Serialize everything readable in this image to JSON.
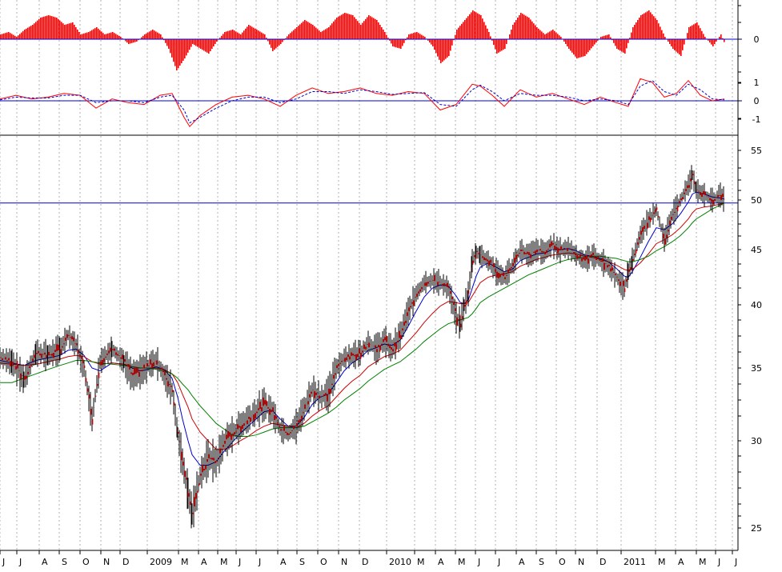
{
  "chart_data": [
    {
      "type": "bar",
      "panel": "momentum-histogram",
      "y_ticks": [
        {
          "value": 0,
          "label": "0"
        }
      ],
      "colors": {
        "bar": "#ff0000",
        "zero_line": "#0000cc"
      },
      "x": [
        0,
        10,
        20,
        30,
        40,
        50,
        60,
        70,
        80,
        90,
        100,
        110,
        120,
        130,
        140,
        150,
        160,
        170,
        180,
        190,
        200,
        210,
        220,
        230,
        240,
        250,
        260,
        270,
        280,
        290,
        300,
        310,
        320,
        330,
        340,
        350,
        360,
        370,
        380,
        390,
        400,
        410,
        420,
        430,
        440,
        450,
        460,
        470,
        480,
        490,
        500,
        510,
        520,
        530,
        540,
        550,
        560,
        570,
        580,
        590,
        600,
        610,
        620,
        630,
        640,
        650,
        660,
        670,
        680,
        690,
        700,
        710,
        720,
        730,
        740,
        750,
        760,
        770,
        780,
        790,
        800,
        810,
        820,
        830,
        840,
        850,
        860,
        870,
        880,
        890,
        900,
        905
      ],
      "values": [
        0.2,
        0.3,
        0.1,
        0.4,
        0.6,
        0.9,
        1.0,
        0.9,
        0.6,
        0.7,
        0.2,
        0.3,
        0.5,
        0.2,
        0.3,
        0.1,
        -0.2,
        -0.1,
        0.2,
        0.4,
        0.2,
        -0.4,
        -1.3,
        -0.8,
        -0.2,
        -0.4,
        -0.6,
        -0.1,
        0.3,
        0.4,
        0.2,
        0.6,
        0.4,
        0.2,
        -0.5,
        -0.2,
        0.2,
        0.5,
        0.8,
        0.6,
        0.3,
        0.5,
        0.9,
        1.1,
        1.0,
        0.6,
        1.0,
        0.8,
        0.3,
        -0.3,
        -0.4,
        0.2,
        0.3,
        0.1,
        -0.3,
        -1.0,
        -0.7,
        0.4,
        0.8,
        1.2,
        1.0,
        0.3,
        -0.6,
        -0.4,
        0.6,
        1.1,
        0.9,
        0.5,
        0.2,
        0.4,
        0.1,
        -0.4,
        -0.8,
        -0.7,
        -0.3,
        0.1,
        0.2,
        -0.4,
        -0.6,
        0.5,
        1.0,
        1.2,
        0.8,
        0.1,
        -0.4,
        -0.7,
        0.5,
        0.7,
        0.1,
        -0.3,
        0.2,
        -0.2
      ]
    },
    {
      "type": "line",
      "panel": "oscillator",
      "y_ticks": [
        {
          "value": 1,
          "label": "1"
        },
        {
          "value": 0,
          "label": "0"
        },
        {
          "value": -1,
          "label": "-1"
        }
      ],
      "colors": {
        "zero_line": "#0000cc"
      },
      "x": [
        0,
        20,
        40,
        60,
        80,
        100,
        120,
        140,
        160,
        180,
        200,
        215,
        230,
        237,
        250,
        270,
        290,
        310,
        330,
        350,
        370,
        390,
        410,
        430,
        450,
        470,
        490,
        510,
        530,
        550,
        570,
        590,
        600,
        615,
        630,
        650,
        670,
        690,
        710,
        730,
        750,
        770,
        785,
        800,
        815,
        830,
        845,
        860,
        875,
        890,
        905
      ],
      "series": [
        {
          "color": "#ff0000",
          "dash": false,
          "values": [
            0.1,
            0.3,
            0.1,
            0.2,
            0.4,
            0.3,
            -0.4,
            0.1,
            -0.1,
            -0.2,
            0.3,
            0.4,
            -0.9,
            -1.4,
            -0.8,
            -0.2,
            0.2,
            0.3,
            0.1,
            -0.3,
            0.3,
            0.7,
            0.4,
            0.5,
            0.7,
            0.4,
            0.3,
            0.5,
            0.4,
            -0.5,
            -0.2,
            0.9,
            0.8,
            0.3,
            -0.3,
            0.6,
            0.2,
            0.4,
            0.1,
            -0.2,
            0.2,
            -0.1,
            -0.3,
            1.2,
            1.0,
            0.2,
            0.4,
            1.1,
            0.3,
            0.0,
            0.1
          ]
        },
        {
          "color": "#0000cc",
          "dash": true,
          "values": [
            0.05,
            0.2,
            0.15,
            0.15,
            0.3,
            0.3,
            -0.1,
            0.0,
            0.0,
            -0.1,
            0.2,
            0.3,
            -0.5,
            -1.2,
            -0.9,
            -0.4,
            0.0,
            0.2,
            0.2,
            -0.1,
            0.1,
            0.5,
            0.5,
            0.4,
            0.6,
            0.5,
            0.35,
            0.4,
            0.45,
            -0.2,
            -0.3,
            0.6,
            0.85,
            0.5,
            0.0,
            0.4,
            0.3,
            0.3,
            0.2,
            0.0,
            0.1,
            0.0,
            -0.2,
            0.8,
            1.1,
            0.5,
            0.3,
            0.9,
            0.6,
            0.1,
            0.05
          ]
        }
      ]
    },
    {
      "type": "line",
      "panel": "price",
      "y_ticks": [
        {
          "value": 55,
          "label": "55"
        },
        {
          "value": 50,
          "label": "50"
        },
        {
          "value": 45,
          "label": "45"
        },
        {
          "value": 40,
          "label": "40"
        },
        {
          "value": 35,
          "label": "35"
        },
        {
          "value": 30,
          "label": "30"
        },
        {
          "value": 25,
          "label": "25"
        }
      ],
      "reference_line": {
        "value": 49.7,
        "color": "#0000cc"
      },
      "x_labels": [
        {
          "x": 3,
          "label": "J"
        },
        {
          "x": 24,
          "label": "J"
        },
        {
          "x": 52,
          "label": "A"
        },
        {
          "x": 77,
          "label": "S"
        },
        {
          "x": 103,
          "label": "O"
        },
        {
          "x": 129,
          "label": "N"
        },
        {
          "x": 153,
          "label": "D"
        },
        {
          "x": 187,
          "label": "2009"
        },
        {
          "x": 226,
          "label": "M"
        },
        {
          "x": 251,
          "label": "A"
        },
        {
          "x": 275,
          "label": "M"
        },
        {
          "x": 298,
          "label": "J"
        },
        {
          "x": 323,
          "label": "J"
        },
        {
          "x": 350,
          "label": "A"
        },
        {
          "x": 374,
          "label": "S"
        },
        {
          "x": 400,
          "label": "O"
        },
        {
          "x": 426,
          "label": "N"
        },
        {
          "x": 452,
          "label": "D"
        },
        {
          "x": 486,
          "label": "2010"
        },
        {
          "x": 521,
          "label": "M"
        },
        {
          "x": 547,
          "label": "A"
        },
        {
          "x": 572,
          "label": "M"
        },
        {
          "x": 597,
          "label": "J"
        },
        {
          "x": 622,
          "label": "J"
        },
        {
          "x": 648,
          "label": "A"
        },
        {
          "x": 673,
          "label": "S"
        },
        {
          "x": 698,
          "label": "O"
        },
        {
          "x": 722,
          "label": "N"
        },
        {
          "x": 749,
          "label": "D"
        },
        {
          "x": 779,
          "label": "2011"
        },
        {
          "x": 822,
          "label": "M"
        },
        {
          "x": 847,
          "label": "A"
        },
        {
          "x": 873,
          "label": "M"
        },
        {
          "x": 897,
          "label": "J"
        },
        {
          "x": 918,
          "label": "J"
        }
      ],
      "x": [
        0,
        15,
        30,
        45,
        60,
        75,
        85,
        95,
        105,
        115,
        125,
        140,
        155,
        165,
        175,
        185,
        195,
        205,
        215,
        222,
        228,
        235,
        240,
        250,
        260,
        270,
        280,
        290,
        300,
        310,
        320,
        330,
        340,
        350,
        360,
        370,
        380,
        390,
        400,
        410,
        420,
        430,
        440,
        450,
        460,
        470,
        480,
        490,
        500,
        510,
        520,
        530,
        540,
        550,
        560,
        570,
        575,
        580,
        585,
        590,
        595,
        600,
        610,
        620,
        630,
        640,
        650,
        660,
        670,
        680,
        690,
        700,
        710,
        720,
        730,
        740,
        750,
        760,
        770,
        780,
        785,
        790,
        800,
        810,
        820,
        830,
        840,
        850,
        860,
        865,
        870,
        880,
        890,
        900,
        905
      ],
      "series": [
        {
          "name": "price",
          "color": "#ff0000",
          "wick_color": "#000000",
          "values": [
            35.8,
            35.5,
            34.2,
            36.2,
            36.0,
            36.5,
            37.6,
            36.8,
            35.0,
            31.5,
            35.5,
            36.5,
            35.5,
            34.5,
            34.8,
            35.2,
            35.6,
            34.5,
            33.5,
            30.5,
            28.8,
            27.0,
            25.8,
            28.0,
            29.0,
            28.8,
            30.0,
            30.5,
            31.0,
            31.5,
            32.0,
            32.5,
            32.0,
            30.8,
            30.5,
            31.0,
            32.2,
            33.5,
            33.0,
            33.2,
            35.0,
            35.8,
            36.0,
            36.2,
            37.0,
            36.5,
            37.2,
            36.5,
            37.6,
            39.5,
            41.0,
            42.0,
            42.2,
            42.0,
            41.5,
            39.0,
            38.5,
            40.0,
            41.0,
            44.0,
            44.8,
            44.5,
            44.0,
            43.0,
            42.5,
            43.5,
            45.0,
            44.5,
            45.0,
            44.8,
            45.5,
            45.0,
            45.2,
            44.5,
            44.0,
            44.5,
            44.0,
            43.5,
            42.5,
            41.5,
            43.0,
            44.0,
            46.5,
            48.0,
            49.0,
            46.0,
            48.5,
            50.0,
            51.5,
            52.5,
            51.0,
            50.5,
            50.0,
            50.5,
            50.0
          ]
        },
        {
          "name": "ma-short",
          "color": "#0000cc",
          "values": [
            35.6,
            35.4,
            35.2,
            35.6,
            35.8,
            36.0,
            36.4,
            36.5,
            36.0,
            35.0,
            34.8,
            35.4,
            35.3,
            35.0,
            34.8,
            34.9,
            35.1,
            34.9,
            34.3,
            33.0,
            31.5,
            30.0,
            29.2,
            28.6,
            28.6,
            28.8,
            29.4,
            29.9,
            30.5,
            31.0,
            31.5,
            32.0,
            32.1,
            31.5,
            31.0,
            31.0,
            31.6,
            32.5,
            33.0,
            33.2,
            34.0,
            34.8,
            35.4,
            35.8,
            36.4,
            36.6,
            36.9,
            36.8,
            37.2,
            38.3,
            39.5,
            40.7,
            41.5,
            41.8,
            41.7,
            40.8,
            40.2,
            40.1,
            40.4,
            41.5,
            42.6,
            43.4,
            43.8,
            43.4,
            43.0,
            43.2,
            44.0,
            44.3,
            44.6,
            44.7,
            45.0,
            45.0,
            45.1,
            44.9,
            44.5,
            44.4,
            44.2,
            43.9,
            43.3,
            42.6,
            42.5,
            43.0,
            44.3,
            45.8,
            47.2,
            47.0,
            47.6,
            48.6,
            49.8,
            50.6,
            50.8,
            50.6,
            50.3,
            50.2,
            50.1
          ]
        },
        {
          "name": "ma-medium",
          "color": "#cc0000",
          "values": [
            35.4,
            35.3,
            35.2,
            35.3,
            35.5,
            35.7,
            35.9,
            36.0,
            35.9,
            35.5,
            35.3,
            35.4,
            35.3,
            35.1,
            35.0,
            35.0,
            35.0,
            34.9,
            34.6,
            34.0,
            33.2,
            32.3,
            31.5,
            30.6,
            30.0,
            29.5,
            29.5,
            29.7,
            30.0,
            30.3,
            30.7,
            31.0,
            31.2,
            31.1,
            31.0,
            30.9,
            31.2,
            31.7,
            32.1,
            32.4,
            33.0,
            33.6,
            34.1,
            34.5,
            35.1,
            35.5,
            35.9,
            36.1,
            36.4,
            37.1,
            37.8,
            38.6,
            39.3,
            39.9,
            40.3,
            40.2,
            40.1,
            40.1,
            40.2,
            40.8,
            41.4,
            42.0,
            42.5,
            42.7,
            42.8,
            43.0,
            43.5,
            43.8,
            44.1,
            44.3,
            44.5,
            44.6,
            44.7,
            44.6,
            44.4,
            44.3,
            44.1,
            43.9,
            43.6,
            43.2,
            43.1,
            43.2,
            43.8,
            44.6,
            45.6,
            46.0,
            46.5,
            47.2,
            48.1,
            48.7,
            49.1,
            49.3,
            49.4,
            49.6,
            49.7
          ]
        },
        {
          "name": "ma-long",
          "color": "#008000",
          "values": [
            34.0,
            34.0,
            34.3,
            34.6,
            34.9,
            35.2,
            35.4,
            35.6,
            35.6,
            35.5,
            35.4,
            35.3,
            35.2,
            35.1,
            35.0,
            35.0,
            34.9,
            34.8,
            34.6,
            34.3,
            33.9,
            33.5,
            33.1,
            32.4,
            31.8,
            31.2,
            30.8,
            30.4,
            30.3,
            30.3,
            30.4,
            30.6,
            30.8,
            30.9,
            30.9,
            30.9,
            31.0,
            31.3,
            31.6,
            31.9,
            32.3,
            32.8,
            33.2,
            33.6,
            34.1,
            34.5,
            34.9,
            35.2,
            35.5,
            36.0,
            36.5,
            37.1,
            37.6,
            38.1,
            38.5,
            38.7,
            38.8,
            38.9,
            39.0,
            39.3,
            39.7,
            40.2,
            40.7,
            41.1,
            41.5,
            41.9,
            42.3,
            42.7,
            43.0,
            43.3,
            43.6,
            43.9,
            44.1,
            44.2,
            44.3,
            44.4,
            44.4,
            44.3,
            44.2,
            44.0,
            43.9,
            43.9,
            44.1,
            44.4,
            44.9,
            45.3,
            45.8,
            46.4,
            47.2,
            47.7,
            48.1,
            48.6,
            49.1,
            49.5,
            49.7
          ]
        }
      ]
    }
  ]
}
